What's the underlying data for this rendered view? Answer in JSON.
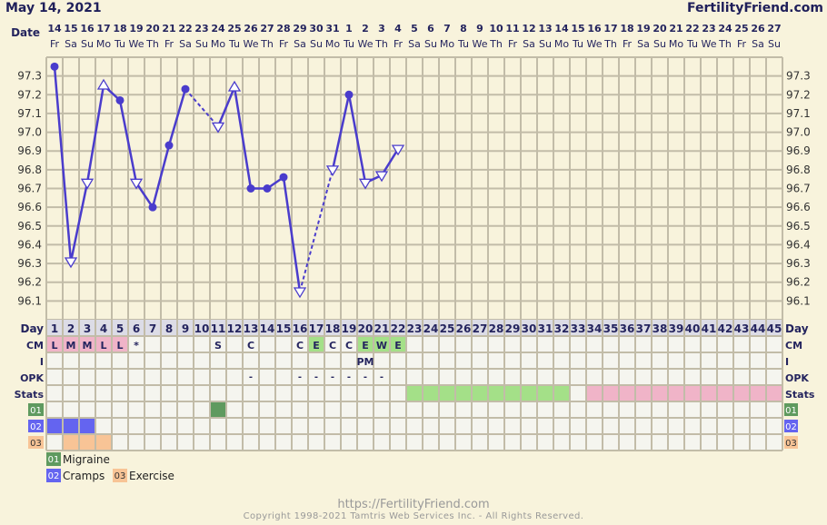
{
  "header": {
    "date": "May 14, 2021",
    "brand": "FertilityFriend.com"
  },
  "footer": {
    "url": "https://FertilityFriend.com",
    "copyright": "Copyright 1998-2021 Tamtris Web Services Inc. - All Rights Reserved."
  },
  "colors": {
    "line": "#4a3ccc",
    "grid": "#c2bca8",
    "background": "#f8f3dc",
    "cm_menses": "#f0b4c8",
    "cm_fertile": "#a4e088",
    "stats_green": "#a4e088",
    "stats_pink": "#f0b4c8",
    "symptom_01": "#5f9a5f",
    "symptom_02": "#6464f0",
    "symptom_03": "#f8c496"
  },
  "chart_data": {
    "type": "line",
    "xlabel": "Date",
    "ylim": [
      96.0,
      97.4
    ],
    "yticks": [
      "97.3",
      "97.2",
      "97.1",
      "97.0",
      "96.9",
      "96.8",
      "96.7",
      "96.6",
      "96.5",
      "96.4",
      "96.3",
      "96.2",
      "96.1"
    ],
    "grid": true,
    "dates": [
      "14",
      "15",
      "16",
      "17",
      "18",
      "19",
      "20",
      "21",
      "22",
      "23",
      "24",
      "25",
      "26",
      "27",
      "28",
      "29",
      "30",
      "31",
      "1",
      "2",
      "3",
      "4",
      "5",
      "6",
      "7",
      "8",
      "9",
      "10",
      "11",
      "12",
      "13",
      "14",
      "15",
      "16",
      "17",
      "18",
      "19",
      "20",
      "21",
      "22",
      "23",
      "24",
      "25",
      "26",
      "27"
    ],
    "weekdays": [
      "Fr",
      "Sa",
      "Su",
      "Mo",
      "Tu",
      "We",
      "Th",
      "Fr",
      "Sa",
      "Su",
      "Mo",
      "Tu",
      "We",
      "Th",
      "Fr",
      "Sa",
      "Su",
      "Mo",
      "Tu",
      "We",
      "Th",
      "Fr",
      "Sa",
      "Su",
      "Mo",
      "Tu",
      "We",
      "Th",
      "Fr",
      "Sa",
      "Su",
      "Mo",
      "Tu",
      "We",
      "Th",
      "Fr",
      "Sa",
      "Su",
      "Mo",
      "Tu",
      "We",
      "Th",
      "Fr",
      "Sa",
      "Su"
    ],
    "temperatures": [
      {
        "day": 1,
        "temp": 97.35,
        "marker": "dot"
      },
      {
        "day": 2,
        "temp": 96.31,
        "marker": "triangle-down"
      },
      {
        "day": 3,
        "temp": 96.73,
        "marker": "triangle-down"
      },
      {
        "day": 4,
        "temp": 97.25,
        "marker": "triangle-up"
      },
      {
        "day": 5,
        "temp": 97.17,
        "marker": "dot"
      },
      {
        "day": 6,
        "temp": 96.73,
        "marker": "triangle-down"
      },
      {
        "day": 7,
        "temp": 96.6,
        "marker": "dot"
      },
      {
        "day": 8,
        "temp": 96.93,
        "marker": "dot"
      },
      {
        "day": 9,
        "temp": 97.23,
        "marker": "dot"
      },
      {
        "day": 11,
        "temp": 97.03,
        "marker": "triangle-down"
      },
      {
        "day": 12,
        "temp": 97.24,
        "marker": "triangle-up"
      },
      {
        "day": 13,
        "temp": 96.7,
        "marker": "dot"
      },
      {
        "day": 14,
        "temp": 96.7,
        "marker": "dot"
      },
      {
        "day": 15,
        "temp": 96.76,
        "marker": "dot"
      },
      {
        "day": 16,
        "temp": 96.15,
        "marker": "triangle-down"
      },
      {
        "day": 18,
        "temp": 96.8,
        "marker": "triangle-down"
      },
      {
        "day": 19,
        "temp": 97.2,
        "marker": "dot"
      },
      {
        "day": 20,
        "temp": 96.73,
        "marker": "triangle-down"
      },
      {
        "day": 21,
        "temp": 96.77,
        "marker": "triangle-down"
      },
      {
        "day": 22,
        "temp": 96.91,
        "marker": "triangle-down"
      }
    ],
    "row_labels": {
      "day": "Day",
      "cm": "CM",
      "i": "I",
      "opk": "OPK",
      "stats": "Stats"
    },
    "cm": [
      {
        "day": 1,
        "v": "L",
        "c": "menses"
      },
      {
        "day": 2,
        "v": "M",
        "c": "menses"
      },
      {
        "day": 3,
        "v": "M",
        "c": "menses"
      },
      {
        "day": 4,
        "v": "L",
        "c": "menses"
      },
      {
        "day": 5,
        "v": "L",
        "c": "menses"
      },
      {
        "day": 6,
        "v": "*"
      },
      {
        "day": 11,
        "v": "S"
      },
      {
        "day": 13,
        "v": "C"
      },
      {
        "day": 16,
        "v": "C"
      },
      {
        "day": 17,
        "v": "E",
        "c": "fertile"
      },
      {
        "day": 18,
        "v": "C"
      },
      {
        "day": 19,
        "v": "C"
      },
      {
        "day": 20,
        "v": "E",
        "c": "fertile"
      },
      {
        "day": 21,
        "v": "W",
        "c": "fertile"
      },
      {
        "day": 22,
        "v": "E",
        "c": "fertile"
      }
    ],
    "intercourse": [
      {
        "day": 20,
        "v": "PM"
      }
    ],
    "opk": [
      {
        "day": 13,
        "v": "-"
      },
      {
        "day": 16,
        "v": "-"
      },
      {
        "day": 17,
        "v": "-"
      },
      {
        "day": 18,
        "v": "-"
      },
      {
        "day": 19,
        "v": "-"
      },
      {
        "day": 20,
        "v": "-"
      },
      {
        "day": 21,
        "v": "-"
      }
    ],
    "stats": [
      {
        "from": 23,
        "to": 32,
        "c": "green"
      },
      {
        "from": 34,
        "to": 45,
        "c": "pink"
      }
    ],
    "symptoms": [
      {
        "code": "01",
        "name": "Migraine",
        "days": [
          11
        ]
      },
      {
        "code": "02",
        "name": "Cramps",
        "days": [
          1,
          2,
          3
        ]
      },
      {
        "code": "03",
        "name": "Exercise",
        "days": [
          2,
          3,
          4
        ]
      }
    ]
  }
}
